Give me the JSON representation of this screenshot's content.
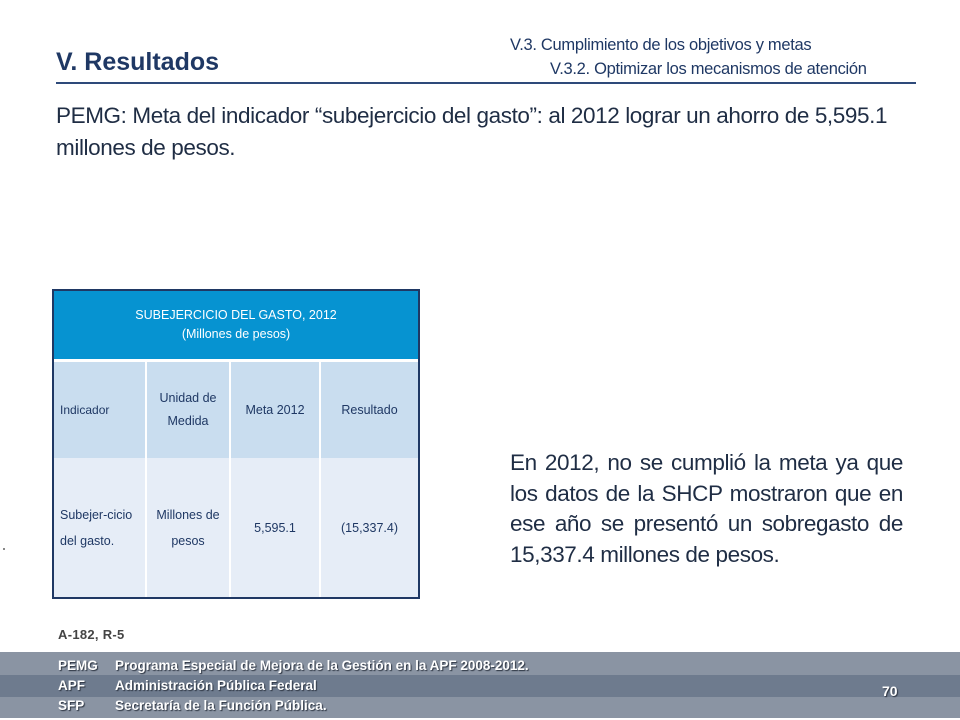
{
  "header": {
    "section_title": "V. Resultados",
    "breadcrumb_line1": "V.3. Cumplimiento de los objetivos y metas",
    "breadcrumb_line2": "V.3.2. Optimizar los mecanismos de atención"
  },
  "intro": "PEMG: Meta del indicador “subejercicio del gasto”: al 2012 lograr un ahorro de 5,595.1 millones de pesos.",
  "table": {
    "title": "SUBEJERCICIO DEL GASTO, 2012",
    "subtitle": "(Millones de pesos)",
    "columns": [
      "Indicador",
      "Unidad de Medida",
      "Meta 2012",
      "Resultado"
    ],
    "rows": [
      [
        "Subejer-cicio del gasto.",
        "Millones de pesos",
        "5,595.1",
        "(15,337.4)"
      ]
    ]
  },
  "body_text": "En 2012, no se cumplió la meta ya que los datos de la SHCP mostraron que en ese año se presentó un sobregasto de 15,337.4 millones de pesos.",
  "reference": "A-182, R-5",
  "footer": {
    "items": [
      {
        "abbr": "PEMG",
        "text": "Programa Especial de Mejora de la Gestión en la APF 2008-2012."
      },
      {
        "abbr": "APF",
        "text": "Administración Pública Federal"
      },
      {
        "abbr": "SFP",
        "text": "Secretaría de la  Función Pública."
      }
    ],
    "page_number": "70"
  },
  "colors": {
    "table_header": "#0693d1",
    "column_header_bg": "#c9ddef",
    "data_row_bg": "#e6edf7",
    "footer_band": "#8a94a3",
    "title_color": "#1f3864"
  }
}
